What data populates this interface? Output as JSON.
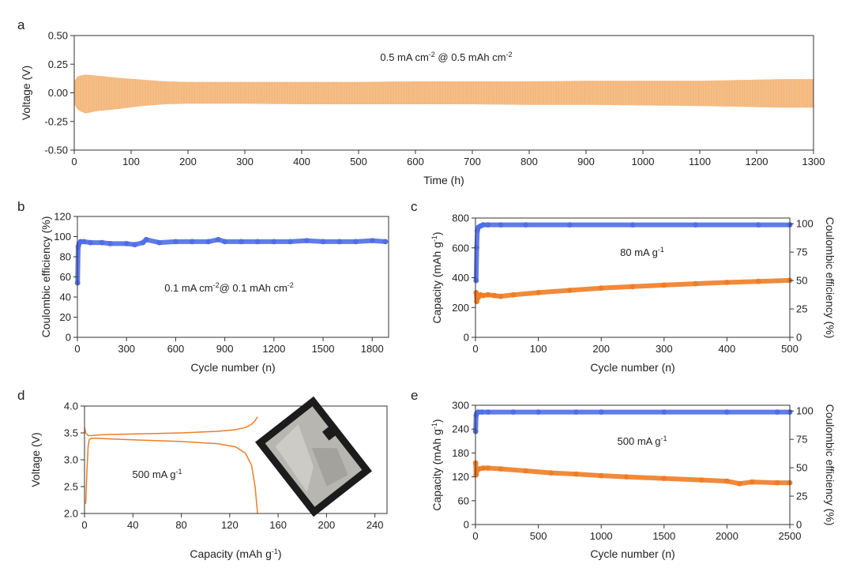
{
  "colors": {
    "voltage": "#f5b77a",
    "efficiency": "#4f6ee8",
    "capacity": "#ef7d25",
    "pouch_dark": "#1c1c1c",
    "pouch_foil": "#b8b6b0"
  },
  "chart_data": [
    {
      "id": "a",
      "type": "area",
      "panel_label": "a",
      "xlabel": "Time (h)",
      "ylabel": "Voltage (V)",
      "xlim": [
        0,
        1300
      ],
      "ylim": [
        -0.5,
        0.5
      ],
      "xticks": [
        0,
        100,
        200,
        300,
        400,
        500,
        600,
        700,
        800,
        900,
        1000,
        1100,
        1200,
        1300
      ],
      "yticks": [
        0.5,
        0.25,
        0.0,
        -0.25,
        -0.5
      ],
      "ytick_labels": [
        "0.50",
        "0.25",
        "0.00",
        "-0.25",
        "-0.50"
      ],
      "annotation": {
        "parts": [
          "0.5 mA cm",
          "-2",
          " @ 0.5 mAh cm",
          "-2"
        ]
      },
      "envelope": {
        "x": [
          0,
          5,
          10,
          20,
          40,
          80,
          120,
          160,
          200,
          300,
          400,
          500,
          600,
          700,
          800,
          900,
          1000,
          1100,
          1150,
          1200,
          1250,
          1300
        ],
        "upper": [
          0.1,
          0.14,
          0.15,
          0.16,
          0.15,
          0.13,
          0.115,
          0.1,
          0.095,
          0.095,
          0.095,
          0.095,
          0.1,
          0.1,
          0.1,
          0.105,
          0.105,
          0.105,
          0.11,
          0.115,
          0.12,
          0.12
        ],
        "lower": [
          -0.1,
          -0.14,
          -0.16,
          -0.18,
          -0.16,
          -0.14,
          -0.115,
          -0.1,
          -0.095,
          -0.095,
          -0.1,
          -0.1,
          -0.1,
          -0.1,
          -0.105,
          -0.105,
          -0.11,
          -0.115,
          -0.12,
          -0.125,
          -0.13,
          -0.13
        ]
      }
    },
    {
      "id": "b",
      "type": "scatter",
      "panel_label": "b",
      "xlabel": "Cycle number (n)",
      "ylabel": "Coulombic efficiency (%)",
      "xlim": [
        0,
        1900
      ],
      "ylim": [
        0,
        120
      ],
      "xticks": [
        0,
        300,
        600,
        900,
        1200,
        1500,
        1800
      ],
      "yticks": [
        0,
        20,
        40,
        60,
        80,
        100,
        120
      ],
      "annotation": {
        "parts": [
          "0.1 mA cm",
          "-2",
          "@ 0.1 mAh cm",
          "-2"
        ]
      },
      "series": [
        {
          "x": [
            1,
            5,
            10,
            20,
            40,
            80,
            150,
            200,
            300,
            350,
            400,
            420,
            500,
            600,
            700,
            800,
            860,
            900,
            1000,
            1100,
            1200,
            1300,
            1400,
            1500,
            1600,
            1700,
            1800,
            1880
          ],
          "y": [
            54,
            90,
            93,
            95,
            95,
            94,
            94,
            93,
            93,
            92,
            94,
            97,
            94,
            95,
            95,
            95,
            97,
            95,
            95,
            95,
            95,
            95,
            96,
            95,
            95,
            95,
            96,
            95
          ]
        }
      ]
    },
    {
      "id": "c",
      "type": "scatter",
      "panel_label": "c",
      "xlabel": "Cycle number (n)",
      "ylabel": "Capacity (mAh g",
      "ylabel_sup": "-1",
      "ylabel_suffix": ")",
      "y2label": "Coulombic efficiency (%)",
      "xlim": [
        0,
        500
      ],
      "ylim": [
        0,
        800
      ],
      "y2lim": [
        0,
        105
      ],
      "xticks": [
        0,
        100,
        200,
        300,
        400,
        500
      ],
      "yticks": [
        0,
        200,
        400,
        600,
        800
      ],
      "y2ticks": [
        0,
        25,
        50,
        75,
        100
      ],
      "annotation": {
        "parts": [
          "80 mA g",
          "-1"
        ]
      },
      "series": [
        {
          "axis": "y2",
          "x": [
            1,
            2,
            3,
            5,
            8,
            12,
            20,
            40,
            80,
            150,
            250,
            350,
            450,
            500
          ],
          "y": [
            50,
            79,
            94,
            97,
            98,
            99,
            99,
            99,
            99,
            99,
            99,
            99,
            99,
            99
          ]
        },
        {
          "axis": "y",
          "x": [
            1,
            2,
            3,
            5,
            8,
            12,
            20,
            30,
            40,
            60,
            100,
            150,
            200,
            250,
            300,
            350,
            400,
            450,
            500
          ],
          "y": [
            300,
            240,
            260,
            270,
            285,
            280,
            285,
            280,
            275,
            285,
            300,
            315,
            330,
            340,
            350,
            360,
            368,
            375,
            382
          ]
        }
      ]
    },
    {
      "id": "d",
      "type": "line",
      "panel_label": "d",
      "xlabel": "Capacity (mAh g",
      "xlabel_sup": "-1",
      "xlabel_suffix": ")",
      "ylabel": "Voltage (V)",
      "xlim": [
        0,
        250
      ],
      "ylim": [
        2.0,
        4.0
      ],
      "xticks": [
        0,
        40,
        80,
        120,
        160,
        200,
        240
      ],
      "yticks": [
        2.0,
        2.5,
        3.0,
        3.5,
        4.0
      ],
      "ytick_labels": [
        "2.0",
        "2.5",
        "3.0",
        "3.5",
        "4.0"
      ],
      "annotation": {
        "parts": [
          "500 mA g",
          "-1"
        ]
      },
      "series": [
        {
          "x": [
            0,
            1,
            3,
            6,
            10,
            20,
            40,
            80,
            110,
            125,
            133,
            138,
            141,
            143
          ],
          "y": [
            3.6,
            3.5,
            3.45,
            3.45,
            3.46,
            3.47,
            3.48,
            3.5,
            3.53,
            3.56,
            3.6,
            3.66,
            3.73,
            3.8
          ]
        },
        {
          "x": [
            1,
            2,
            3,
            4,
            6,
            10,
            20,
            40,
            80,
            110,
            125,
            133,
            138,
            141,
            143
          ],
          "y": [
            2.18,
            2.8,
            3.25,
            3.38,
            3.4,
            3.4,
            3.39,
            3.37,
            3.34,
            3.3,
            3.24,
            3.12,
            2.9,
            2.5,
            2.0
          ]
        }
      ]
    },
    {
      "id": "e",
      "type": "scatter",
      "panel_label": "e",
      "xlabel": "Cycle number (n)",
      "ylabel": "Capacity (mAh g",
      "ylabel_sup": "-1",
      "ylabel_suffix": ")",
      "y2label": "Coulombic efficiency (%)",
      "xlim": [
        0,
        2500
      ],
      "ylim": [
        0,
        300
      ],
      "y2lim": [
        0,
        105
      ],
      "xticks": [
        0,
        500,
        1000,
        1500,
        2000,
        2500
      ],
      "yticks": [
        0,
        60,
        120,
        180,
        240,
        300
      ],
      "y2ticks": [
        0,
        25,
        50,
        75,
        100
      ],
      "annotation": {
        "parts": [
          "500 mA g",
          "-1"
        ]
      },
      "series": [
        {
          "axis": "y2",
          "x": [
            1,
            5,
            10,
            20,
            50,
            100,
            300,
            500,
            800,
            1000,
            1500,
            2000,
            2400,
            2500
          ],
          "y": [
            82,
            96,
            98,
            99,
            99,
            99,
            99,
            99,
            99,
            99,
            99,
            99,
            99,
            99
          ]
        },
        {
          "axis": "y",
          "x": [
            1,
            5,
            10,
            30,
            60,
            100,
            200,
            400,
            600,
            800,
            1000,
            1200,
            1500,
            1800,
            2000,
            2100,
            2200,
            2400,
            2500
          ],
          "y": [
            155,
            125,
            135,
            140,
            142,
            142,
            140,
            135,
            130,
            127,
            123,
            120,
            116,
            112,
            109,
            103,
            107,
            105,
            105
          ]
        }
      ]
    }
  ]
}
